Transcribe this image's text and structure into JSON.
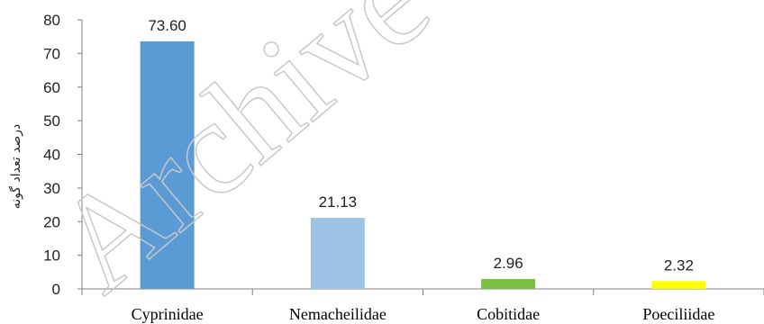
{
  "chart_data": {
    "type": "bar",
    "categories": [
      "Cyprinidae",
      "Nemacheilidae",
      "Cobitidae",
      "Poeciliidae"
    ],
    "values": [
      73.6,
      21.13,
      2.96,
      2.32
    ],
    "data_labels": [
      "73.60",
      "21.13",
      "2.96",
      "2.32"
    ],
    "colors": [
      "#5b9bd5",
      "#9dc3e6",
      "#7ac143",
      "#ffff00"
    ],
    "ylabel": "درصد تعداد گونه",
    "ylim": [
      0,
      80
    ],
    "yticks": [
      0,
      10,
      20,
      30,
      40,
      50,
      60,
      70,
      80
    ],
    "grid": false,
    "legend": "none"
  },
  "watermark": {
    "text": "Archive"
  }
}
